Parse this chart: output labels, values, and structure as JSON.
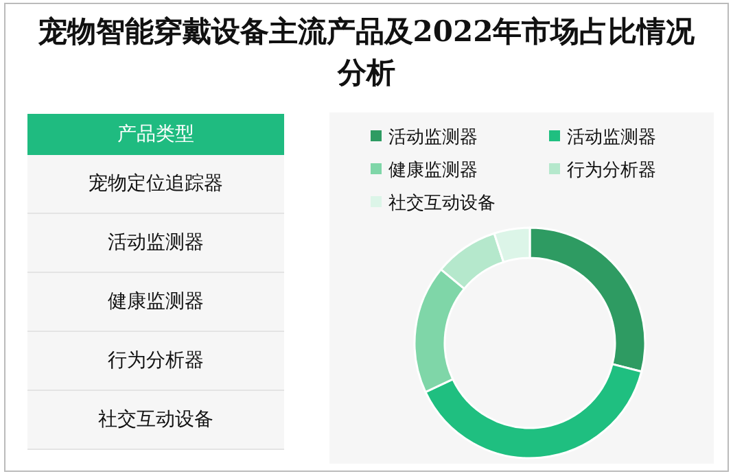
{
  "chart_data": [
    {
      "type": "other",
      "title": "产品类型",
      "annotations": [
        "宠物定位追踪器",
        "活动监测器",
        "健康监测器",
        "行为分析器",
        "社交互动设备"
      ]
    },
    {
      "type": "donut",
      "title": "宠物智能穿戴设备主流产品及2022年市场占比情况分析",
      "categories": [
        "活动监测器",
        "活动监测器",
        "健康监测器",
        "行为分析器",
        "社交互动设备"
      ],
      "values": [
        29,
        39,
        18,
        9,
        5
      ],
      "colors": [
        "#2e9b62",
        "#1fbf80",
        "#7fd6a8",
        "#b5e8cc",
        "#dcf5e8"
      ],
      "legend": "top"
    }
  ]
}
